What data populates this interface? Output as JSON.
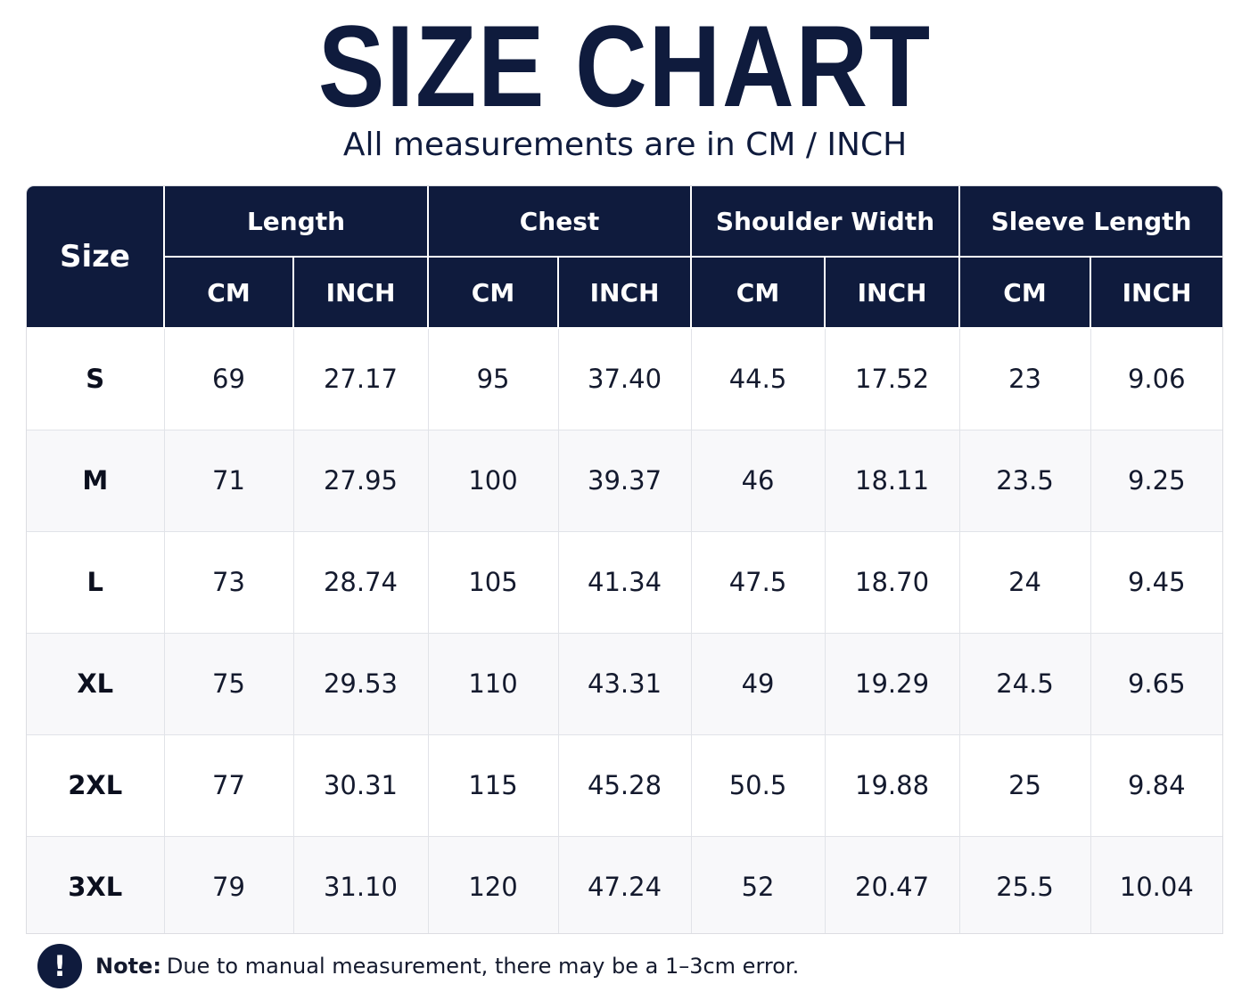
{
  "title": "SIZE CHART",
  "subtitle": "All measurements are in CM / INCH",
  "table": {
    "size_header": "Size",
    "groups": [
      "Length",
      "Chest",
      "Shoulder Width",
      "Sleeve Length"
    ],
    "units": [
      "CM",
      "INCH",
      "CM",
      "INCH",
      "CM",
      "INCH",
      "CM",
      "INCH"
    ],
    "rows": [
      {
        "size": "S",
        "values": [
          "69",
          "27.17",
          "95",
          "37.40",
          "44.5",
          "17.52",
          "23",
          "9.06"
        ]
      },
      {
        "size": "M",
        "values": [
          "71",
          "27.95",
          "100",
          "39.37",
          "46",
          "18.11",
          "23.5",
          "9.25"
        ]
      },
      {
        "size": "L",
        "values": [
          "73",
          "28.74",
          "105",
          "41.34",
          "47.5",
          "18.70",
          "24",
          "9.45"
        ]
      },
      {
        "size": "XL",
        "values": [
          "75",
          "29.53",
          "110",
          "43.31",
          "49",
          "19.29",
          "24.5",
          "9.65"
        ]
      },
      {
        "size": "2XL",
        "values": [
          "77",
          "30.31",
          "115",
          "45.28",
          "50.5",
          "19.88",
          "25",
          "9.84"
        ]
      },
      {
        "size": "3XL",
        "values": [
          "79",
          "31.10",
          "120",
          "47.24",
          "52",
          "20.47",
          "25.5",
          "10.04"
        ]
      }
    ]
  },
  "note": {
    "icon": "exclamation-icon",
    "label": "Note:",
    "text": "Due to manual measurement, there may be a 1–3cm error."
  },
  "colors": {
    "primary": "#0f1b3d",
    "row_alt": "#f8f8fa",
    "grid": "#e1e3e8"
  }
}
